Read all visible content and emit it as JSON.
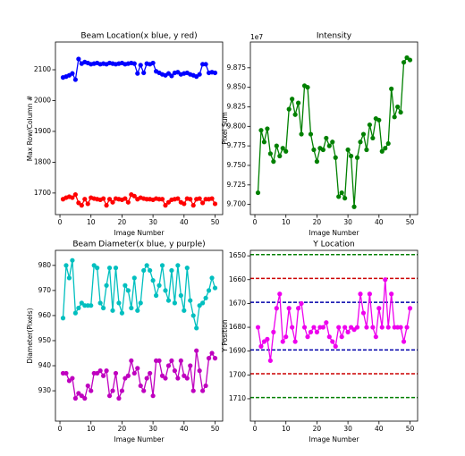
{
  "chart_data": [
    {
      "type": "line",
      "title": "Beam Location(x blue, y red)",
      "xlabel": "Image Number",
      "ylabel": "Max Row/Column #",
      "x": [
        1,
        2,
        3,
        4,
        5,
        6,
        7,
        8,
        9,
        10,
        11,
        12,
        13,
        14,
        15,
        16,
        17,
        18,
        19,
        20,
        21,
        22,
        23,
        24,
        25,
        26,
        27,
        28,
        29,
        30,
        31,
        32,
        33,
        34,
        35,
        36,
        37,
        38,
        39,
        40,
        41,
        42,
        43,
        44,
        45,
        46,
        47,
        48,
        49,
        50
      ],
      "xlim": [
        -1.45,
        52.45
      ],
      "xticks": [
        0,
        10,
        20,
        30,
        40,
        50
      ],
      "ylim": [
        1630,
        2190
      ],
      "yticks": [
        1700,
        1800,
        1900,
        2000,
        2100
      ],
      "series": [
        {
          "name": "x",
          "color": "#0000ff",
          "values": [
            2075,
            2078,
            2082,
            2088,
            2068,
            2135,
            2120,
            2125,
            2122,
            2118,
            2120,
            2122,
            2118,
            2120,
            2118,
            2122,
            2120,
            2118,
            2120,
            2122,
            2118,
            2120,
            2122,
            2120,
            2088,
            2115,
            2090,
            2120,
            2118,
            2122,
            2095,
            2090,
            2085,
            2082,
            2088,
            2080,
            2090,
            2092,
            2085,
            2088,
            2090,
            2085,
            2082,
            2078,
            2085,
            2118,
            2118,
            2090,
            2092,
            2090
          ]
        },
        {
          "name": "y",
          "color": "#ff0000",
          "values": [
            1680,
            1685,
            1688,
            1685,
            1695,
            1668,
            1660,
            1680,
            1665,
            1685,
            1682,
            1680,
            1678,
            1682,
            1660,
            1680,
            1670,
            1682,
            1680,
            1678,
            1682,
            1670,
            1695,
            1690,
            1680,
            1685,
            1682,
            1680,
            1680,
            1678,
            1682,
            1680,
            1680,
            1660,
            1670,
            1678,
            1680,
            1682,
            1670,
            1665,
            1682,
            1680,
            1660,
            1680,
            1682,
            1668,
            1680,
            1680,
            1682,
            1665
          ]
        }
      ]
    },
    {
      "type": "line",
      "title": "Intensity",
      "xlabel": "Image Number",
      "ylabel": "Pixel Sum",
      "y_offset_label": "1e7",
      "x": [
        1,
        2,
        3,
        4,
        5,
        6,
        7,
        8,
        9,
        10,
        11,
        12,
        13,
        14,
        15,
        16,
        17,
        18,
        19,
        20,
        21,
        22,
        23,
        24,
        25,
        26,
        27,
        28,
        29,
        30,
        31,
        32,
        33,
        34,
        35,
        36,
        37,
        38,
        39,
        40,
        41,
        42,
        43,
        44,
        45,
        46,
        47,
        48,
        49,
        50
      ],
      "xlim": [
        -1.45,
        52.45
      ],
      "xticks": [
        0,
        10,
        20,
        30,
        40,
        50
      ],
      "ylim": [
        9.687,
        9.908
      ],
      "yticks": [
        {
          "value": 9.7,
          "label": "9.700"
        },
        9.725,
        {
          "value": 9.75,
          "label": "9.750"
        },
        9.775,
        {
          "value": 9.8,
          "label": "9.800"
        },
        9.825,
        {
          "value": 9.85,
          "label": "9.850"
        },
        9.875
      ],
      "series": [
        {
          "name": "Intensity",
          "color": "#008000",
          "values": [
            9.715,
            9.795,
            9.78,
            9.797,
            9.765,
            9.755,
            9.775,
            9.762,
            9.772,
            9.768,
            9.822,
            9.835,
            9.815,
            9.83,
            9.79,
            9.852,
            9.85,
            9.79,
            9.77,
            9.755,
            9.772,
            9.77,
            9.785,
            9.775,
            9.78,
            9.76,
            9.71,
            9.715,
            9.708,
            9.77,
            9.762,
            9.697,
            9.76,
            9.78,
            9.79,
            9.77,
            9.802,
            9.785,
            9.81,
            9.808,
            9.768,
            9.772,
            9.778,
            9.848,
            9.812,
            9.825,
            9.818,
            9.882,
            9.888,
            9.885
          ]
        }
      ]
    },
    {
      "type": "line",
      "title": "Beam Diameter(x blue, y purple)",
      "xlabel": "Image Number",
      "ylabel": "Diameter(Pixels)",
      "x": [
        1,
        2,
        3,
        4,
        5,
        6,
        7,
        8,
        9,
        10,
        11,
        12,
        13,
        14,
        15,
        16,
        17,
        18,
        19,
        20,
        21,
        22,
        23,
        24,
        25,
        26,
        27,
        28,
        29,
        30,
        31,
        32,
        33,
        34,
        35,
        36,
        37,
        38,
        39,
        40,
        41,
        42,
        43,
        44,
        45,
        46,
        47,
        48,
        49,
        50
      ],
      "xlim": [
        -1.45,
        52.45
      ],
      "xticks": [
        0,
        10,
        20,
        30,
        40,
        50
      ],
      "ylim": [
        917.9,
        986
      ],
      "yticks": [
        930,
        940,
        950,
        960,
        970,
        980
      ],
      "series": [
        {
          "name": "x",
          "color": "#00bfbf",
          "values": [
            959,
            980,
            975,
            982,
            961,
            963,
            965,
            964,
            964,
            964,
            980,
            979,
            965,
            963,
            972,
            979,
            962,
            979,
            965,
            961,
            972,
            970,
            963,
            975,
            962,
            965,
            978,
            980,
            978,
            974,
            968,
            972,
            980,
            970,
            966,
            978,
            965,
            980,
            968,
            962,
            979,
            966,
            960,
            955,
            964,
            965,
            967,
            970,
            975,
            971
          ]
        },
        {
          "name": "y",
          "color": "#bf00bf",
          "values": [
            937,
            937,
            934,
            935,
            927,
            929,
            928,
            927,
            932,
            930,
            937,
            937,
            938,
            936,
            938,
            928,
            930,
            937,
            927,
            930,
            935,
            936,
            942,
            937,
            939,
            932,
            930,
            935,
            937,
            928,
            942,
            942,
            936,
            935,
            940,
            942,
            938,
            935,
            942,
            936,
            935,
            940,
            930,
            946,
            938,
            930,
            932,
            943,
            945,
            943
          ]
        }
      ]
    },
    {
      "type": "line",
      "title": "Y Location",
      "xlabel": "Image Number",
      "ylabel": "Y Position",
      "x": [
        1,
        2,
        3,
        4,
        5,
        6,
        7,
        8,
        9,
        10,
        11,
        12,
        13,
        14,
        15,
        16,
        17,
        18,
        19,
        20,
        21,
        22,
        23,
        24,
        25,
        26,
        27,
        28,
        29,
        30,
        31,
        32,
        33,
        34,
        35,
        36,
        37,
        38,
        39,
        40,
        41,
        42,
        43,
        44,
        45,
        46,
        47,
        48,
        49,
        50
      ],
      "xlim": [
        -1.45,
        52.45
      ],
      "xticks": [
        0,
        10,
        20,
        30,
        40,
        50
      ],
      "ylim": [
        1647.7,
        1719.4
      ],
      "y_inverted": true,
      "yticks": [
        1650,
        1660,
        1670,
        1680,
        1690,
        1700,
        1710
      ],
      "reference_lines": [
        {
          "value": 1649.5,
          "color": "#008000"
        },
        {
          "value": 1659.5,
          "color": "#cc0000"
        },
        {
          "value": 1669.5,
          "color": "#0000aa"
        },
        {
          "value": 1689.5,
          "color": "#0000aa"
        },
        {
          "value": 1699.5,
          "color": "#cc0000"
        },
        {
          "value": 1709.5,
          "color": "#008000"
        }
      ],
      "series": [
        {
          "name": "Y Location",
          "color": "#ee00ee",
          "values": [
            1680,
            1688,
            1686,
            1685,
            1694,
            1682,
            1672,
            1666,
            1686,
            1684,
            1672,
            1680,
            1686,
            1672,
            1670,
            1680,
            1684,
            1682,
            1680,
            1682,
            1680,
            1680,
            1678,
            1684,
            1686,
            1688,
            1680,
            1684,
            1680,
            1682,
            1680,
            1681,
            1680,
            1666,
            1674,
            1680,
            1666,
            1680,
            1684,
            1672,
            1680,
            1660,
            1680,
            1666,
            1680,
            1680,
            1680,
            1686,
            1680,
            1672
          ]
        }
      ]
    }
  ]
}
